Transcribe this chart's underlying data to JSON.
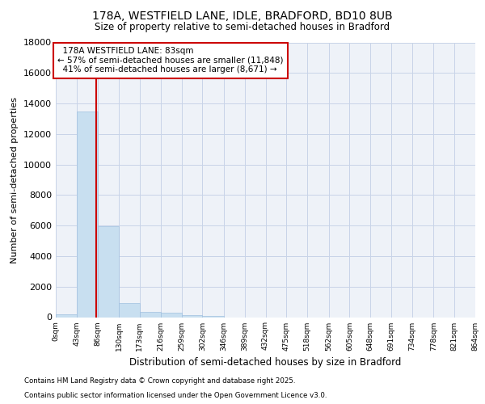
{
  "title_line1": "178A, WESTFIELD LANE, IDLE, BRADFORD, BD10 8UB",
  "title_line2": "Size of property relative to semi-detached houses in Bradford",
  "xlabel": "Distribution of semi-detached houses by size in Bradford",
  "ylabel": "Number of semi-detached properties",
  "bar_edges": [
    0,
    43,
    86,
    130,
    173,
    216,
    259,
    302,
    346,
    389,
    432,
    475,
    518,
    562,
    605,
    648,
    691,
    734,
    778,
    821,
    864
  ],
  "bar_values": [
    200,
    13500,
    5950,
    950,
    320,
    270,
    140,
    80,
    0,
    0,
    0,
    0,
    0,
    0,
    0,
    0,
    0,
    0,
    0,
    0
  ],
  "property_size": 83,
  "property_label": "178A WESTFIELD LANE: 83sqm",
  "pct_smaller": 57,
  "n_smaller": 11848,
  "pct_larger": 41,
  "n_larger": 8671,
  "bar_color": "#c8dff0",
  "bar_edge_color": "#a0c0e0",
  "property_line_color": "#cc0000",
  "annotation_box_color": "#cc0000",
  "grid_color": "#c8d4e8",
  "bg_color": "#eef2f8",
  "ylim": [
    0,
    18000
  ],
  "yticks": [
    0,
    2000,
    4000,
    6000,
    8000,
    10000,
    12000,
    14000,
    16000,
    18000
  ],
  "tick_labels": [
    "0sqm",
    "43sqm",
    "86sqm",
    "130sqm",
    "173sqm",
    "216sqm",
    "259sqm",
    "302sqm",
    "346sqm",
    "389sqm",
    "432sqm",
    "475sqm",
    "518sqm",
    "562sqm",
    "605sqm",
    "648sqm",
    "691sqm",
    "734sqm",
    "778sqm",
    "821sqm",
    "864sqm"
  ],
  "footer_line1": "Contains HM Land Registry data © Crown copyright and database right 2025.",
  "footer_line2": "Contains public sector information licensed under the Open Government Licence v3.0."
}
